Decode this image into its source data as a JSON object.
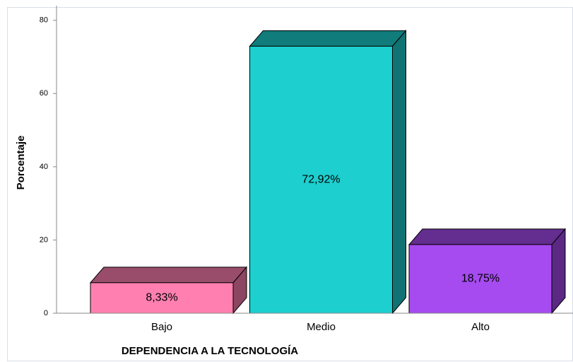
{
  "chart_data": {
    "type": "bar3d",
    "x_label": "DEPENDENCIA A LA TECNOLOGÍA",
    "y_label": "Porcentaje",
    "categories": [
      "Bajo",
      "Medio",
      "Alto"
    ],
    "values": [
      8.33,
      72.92,
      18.75
    ],
    "value_labels": [
      "8,33%",
      "72,92%",
      "18,75%"
    ],
    "colors": [
      "#ff80b0",
      "#1dcfcf",
      "#a64bf0"
    ],
    "ylim": [
      0,
      84
    ],
    "yticks": [
      0,
      20,
      40,
      60,
      80
    ]
  }
}
